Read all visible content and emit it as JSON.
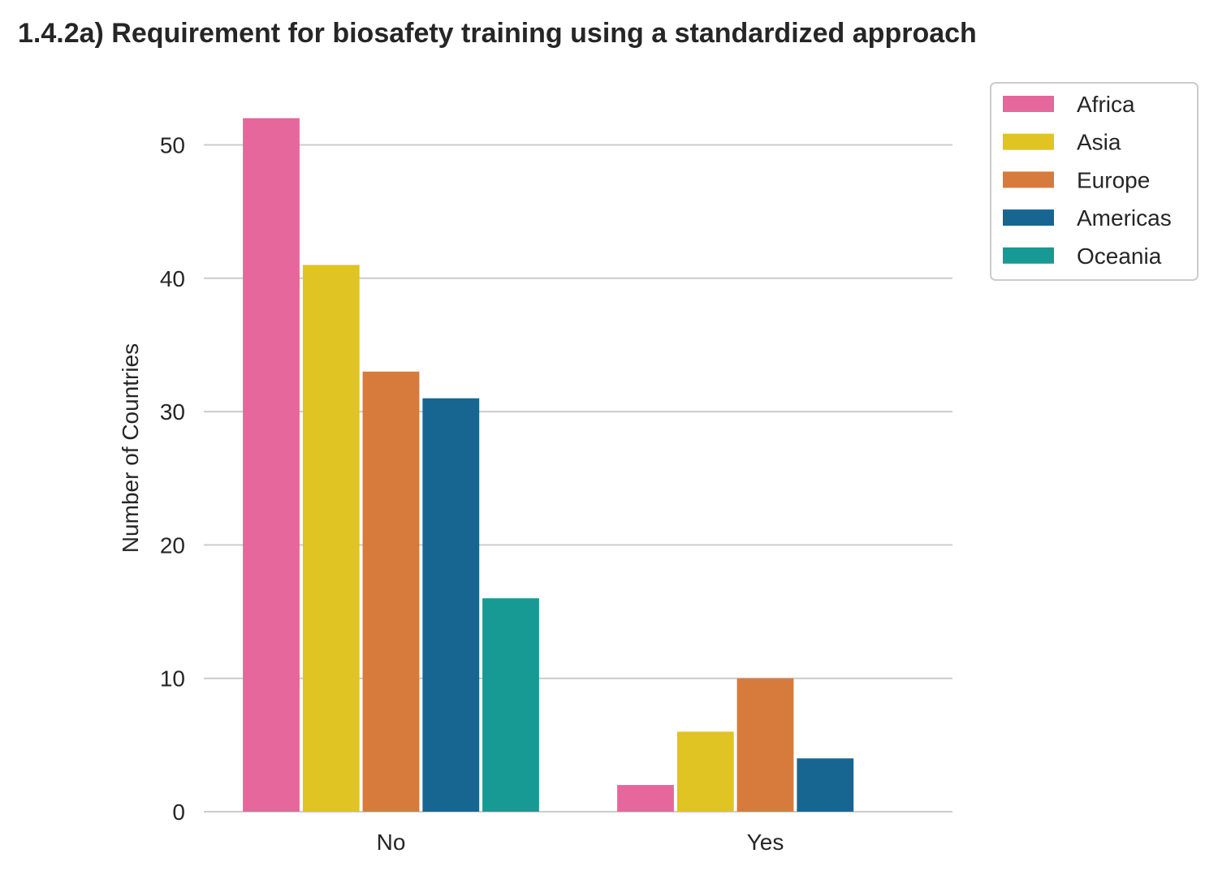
{
  "chart_data": {
    "type": "bar",
    "title": "1.4.2a) Requirement for biosafety training using a standardized approach",
    "xlabel": "",
    "ylabel": "Number of Countries",
    "categories": [
      "No",
      "Yes"
    ],
    "series": [
      {
        "name": "Africa",
        "color": "#e5679c",
        "values": [
          52,
          2
        ]
      },
      {
        "name": "Asia",
        "color": "#dfc423",
        "values": [
          41,
          6
        ]
      },
      {
        "name": "Europe",
        "color": "#d67b3c",
        "values": [
          33,
          10
        ]
      },
      {
        "name": "Americas",
        "color": "#176691",
        "values": [
          31,
          4
        ]
      },
      {
        "name": "Oceania",
        "color": "#179a94",
        "values": [
          16,
          0
        ]
      }
    ],
    "ylim": [
      0,
      54
    ],
    "yticks": [
      0,
      10,
      20,
      30,
      40,
      50
    ],
    "grid": true,
    "legend_position": "top-right, outside plot"
  }
}
